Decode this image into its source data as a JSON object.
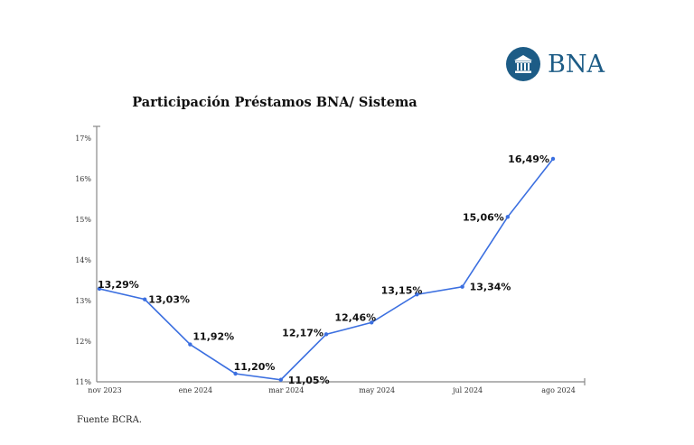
{
  "logo": {
    "text": "BNA",
    "icon": "bank-building-icon",
    "color": "#1d5c86"
  },
  "source": "Fuente BCRA.",
  "chart_data": {
    "type": "line",
    "title": "Participación Préstamos BNA/ Sistema",
    "xlabel": "",
    "ylabel": "",
    "ylim": [
      11,
      17
    ],
    "yticks": [
      "11%",
      "12%",
      "13%",
      "14%",
      "15%",
      "16%",
      "17%"
    ],
    "ytick_values": [
      11,
      12,
      13,
      14,
      15,
      16,
      17
    ],
    "xtick_labels": [
      "nov 2023",
      "ene 2024",
      "mar 2024",
      "may 2024",
      "jul 2024",
      "ago 2024"
    ],
    "xtick_indices": [
      0,
      2,
      4,
      6,
      8,
      10
    ],
    "values": [
      13.29,
      13.03,
      11.92,
      11.2,
      11.05,
      12.17,
      12.46,
      13.15,
      13.34,
      15.06,
      16.49
    ],
    "data_labels": [
      "13,29%",
      "13,03%",
      "11,92%",
      "11,20%",
      "11,05%",
      "12,17%",
      "12,46%",
      "13,15%",
      "13,34%",
      "15,06%",
      "16,49%"
    ],
    "line_color": "#3b6fe0",
    "grid": false,
    "legend": "none"
  }
}
